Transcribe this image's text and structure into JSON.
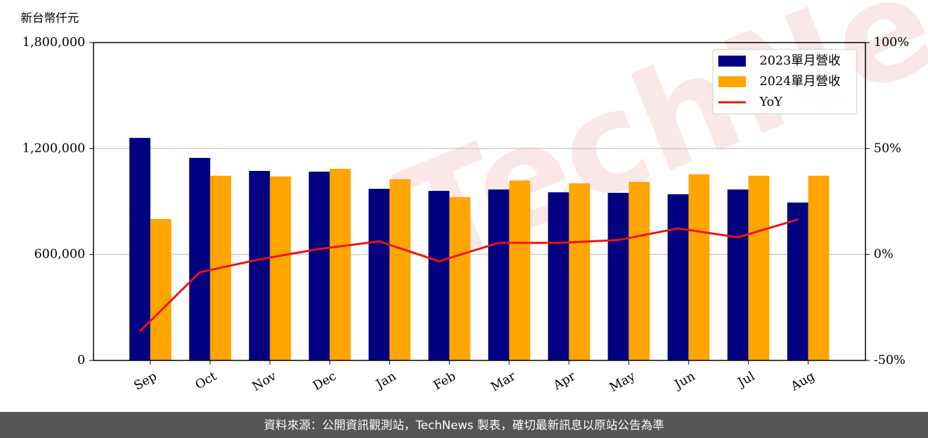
{
  "chart_data": {
    "type": "bar-line",
    "y_label": "新台幣仟元",
    "watermark": "TechNews",
    "footer": "資料來源：公開資訊觀測站，TechNews 製表，確切最新訊息以原站公告為準",
    "categories": [
      "Sep",
      "Oct",
      "Nov",
      "Dec",
      "Jan",
      "Feb",
      "Mar",
      "Apr",
      "May",
      "Jun",
      "Jul",
      "Aug"
    ],
    "series": [
      {
        "name": "2023單月營收",
        "type": "bar",
        "color": "#000080",
        "values": [
          1260000,
          1147000,
          1073000,
          1069000,
          972000,
          960000,
          968000,
          952000,
          949000,
          941000,
          968000,
          894000
        ]
      },
      {
        "name": "2024單月營收",
        "type": "bar",
        "color": "#ffa500",
        "values": [
          801000,
          1046000,
          1042000,
          1085000,
          1026000,
          925000,
          1019000,
          1003000,
          1011000,
          1054000,
          1046000,
          1046000
        ]
      },
      {
        "name": "YoY",
        "type": "line",
        "axis": "y2",
        "color": "#ee1111",
        "values": [
          -36.3,
          -8.4,
          -2.3,
          2.6,
          6.2,
          -3.2,
          5.5,
          5.5,
          6.8,
          12.3,
          8.1,
          16.5
        ]
      }
    ],
    "ylim": [
      0,
      1800000
    ],
    "yticks": [
      {
        "value": 0,
        "label": "0"
      },
      {
        "value": 600000,
        "label": "600,000"
      },
      {
        "value": 1200000,
        "label": "1,200,000"
      },
      {
        "value": 1800000,
        "label": "1,800,000"
      }
    ],
    "y2lim": [
      -50,
      100
    ],
    "y2ticks": [
      {
        "value": -50,
        "label": "-50%"
      },
      {
        "value": 0,
        "label": "0%"
      },
      {
        "value": 50,
        "label": "50%"
      },
      {
        "value": 100,
        "label": "100%"
      }
    ],
    "grid": true,
    "legend": "upper right"
  }
}
